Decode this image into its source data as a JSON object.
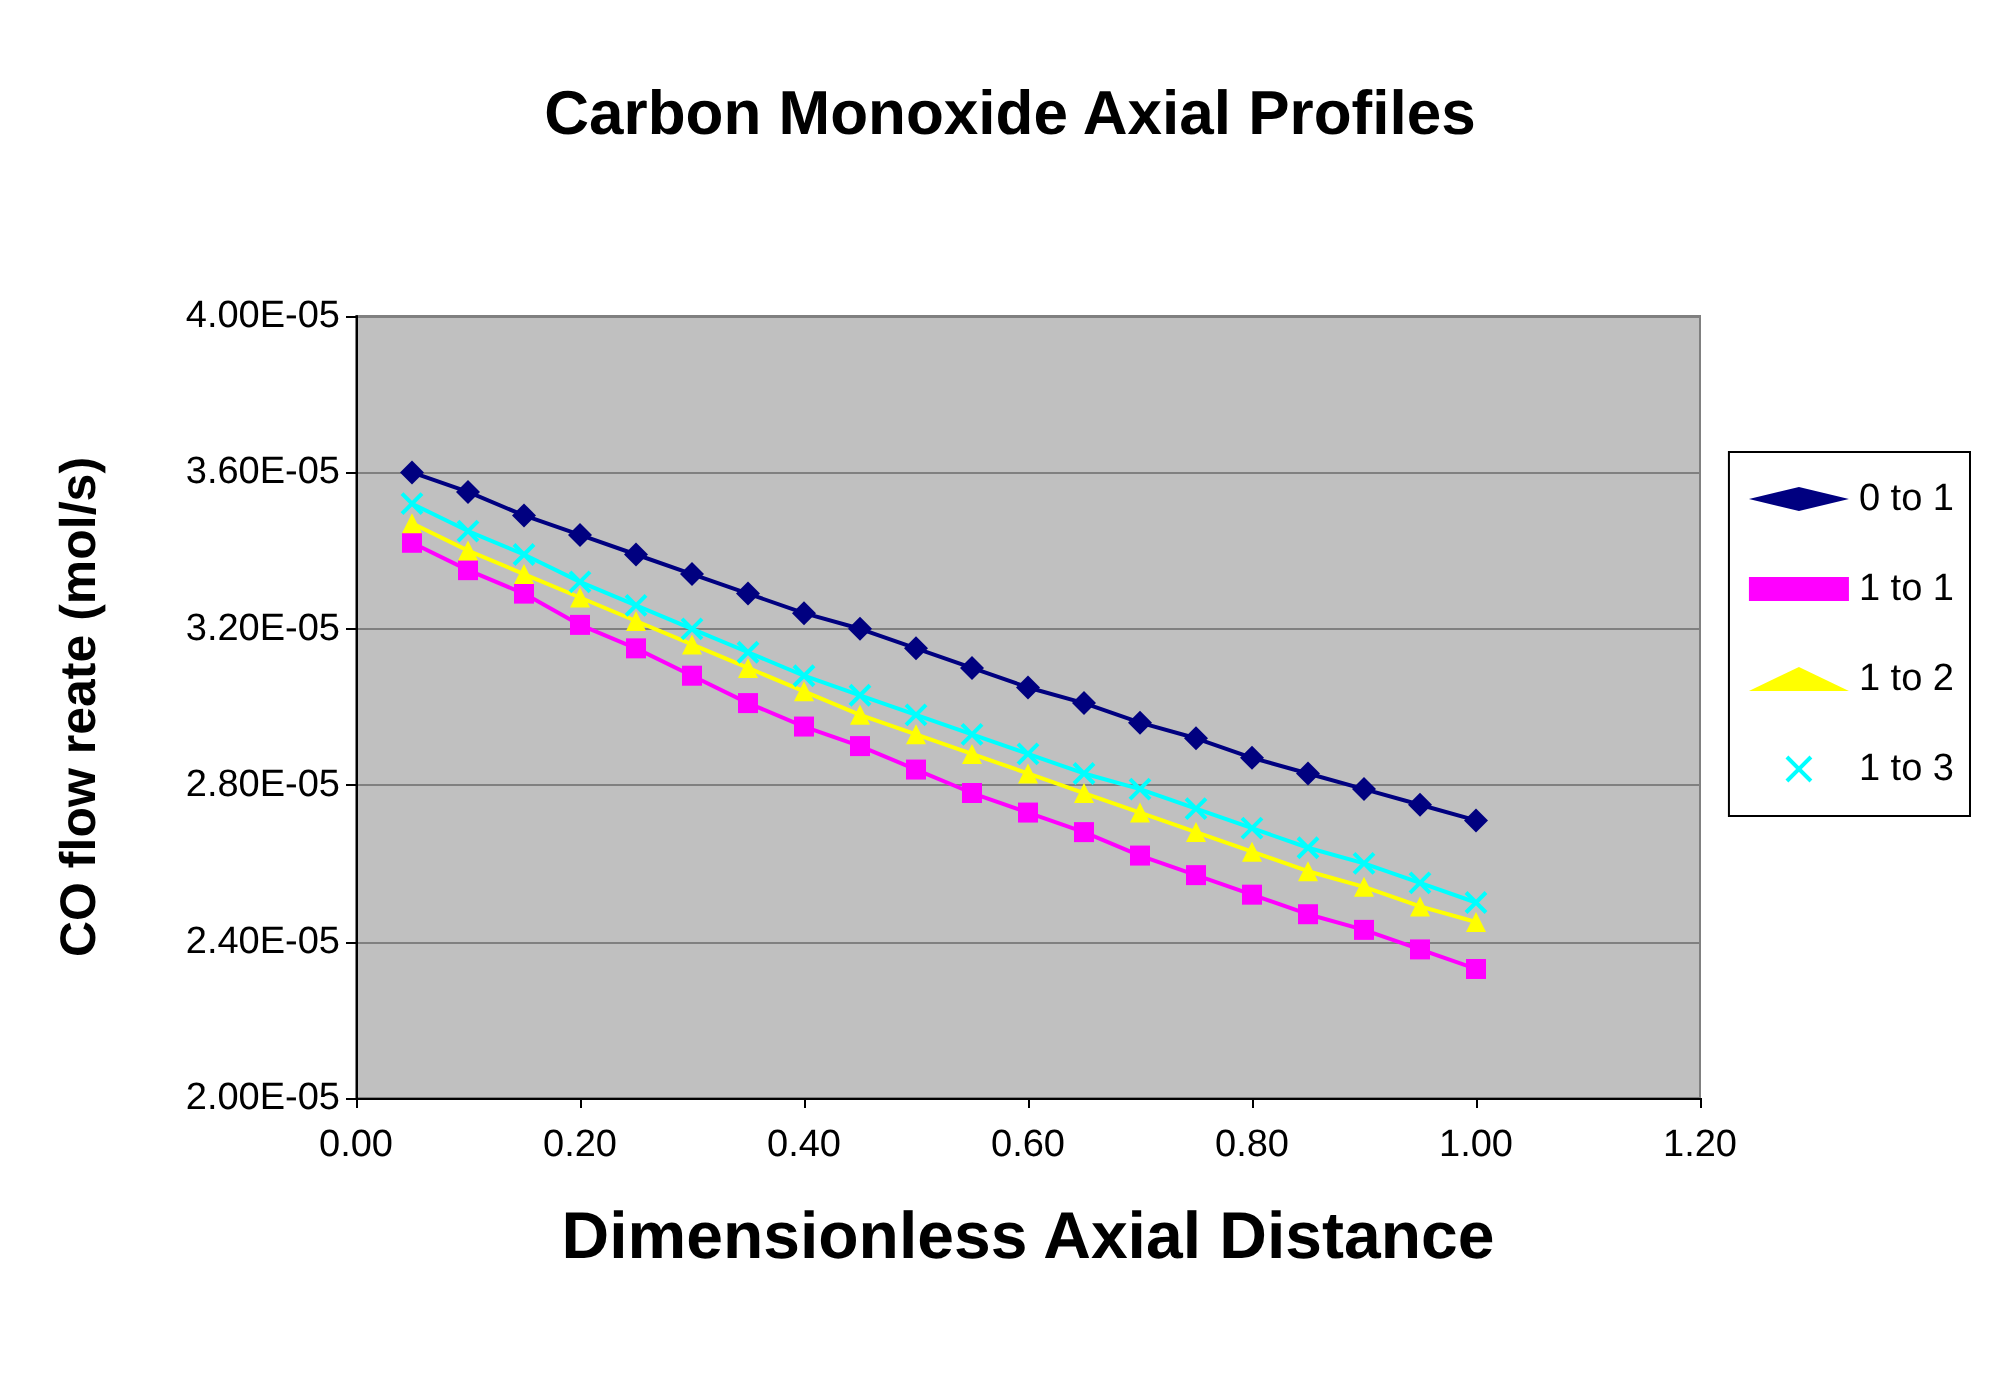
{
  "chart_data": {
    "type": "line",
    "title": "Carbon Monoxide Axial Profiles",
    "xlabel": "Dimensionless Axial Distance",
    "ylabel": "CO flow reate (mol/s)",
    "x": [
      0.05,
      0.1,
      0.15,
      0.2,
      0.25,
      0.3,
      0.35,
      0.4,
      0.45,
      0.5,
      0.55,
      0.6,
      0.65,
      0.7,
      0.75,
      0.8,
      0.85,
      0.9,
      0.95,
      1.0
    ],
    "series": [
      {
        "name": "0 to 1",
        "color": "#000080",
        "marker": "diamond",
        "values": [
          3.6e-05,
          3.55e-05,
          3.49e-05,
          3.44e-05,
          3.39e-05,
          3.34e-05,
          3.29e-05,
          3.24e-05,
          3.2e-05,
          3.15e-05,
          3.1e-05,
          3.05e-05,
          3.01e-05,
          2.96e-05,
          2.92e-05,
          2.87e-05,
          2.83e-05,
          2.79e-05,
          2.75e-05,
          2.71e-05
        ]
      },
      {
        "name": "1 to 1",
        "color": "#ff00ff",
        "marker": "square",
        "values": [
          3.42e-05,
          3.35e-05,
          3.29e-05,
          3.21e-05,
          3.15e-05,
          3.08e-05,
          3.01e-05,
          2.95e-05,
          2.9e-05,
          2.84e-05,
          2.78e-05,
          2.73e-05,
          2.68e-05,
          2.62e-05,
          2.57e-05,
          2.52e-05,
          2.47e-05,
          2.43e-05,
          2.38e-05,
          2.33e-05
        ]
      },
      {
        "name": "1 to 2",
        "color": "#ffff00",
        "marker": "triangle",
        "values": [
          3.47e-05,
          3.4e-05,
          3.34e-05,
          3.28e-05,
          3.22e-05,
          3.16e-05,
          3.1e-05,
          3.04e-05,
          2.98e-05,
          2.93e-05,
          2.88e-05,
          2.83e-05,
          2.78e-05,
          2.73e-05,
          2.68e-05,
          2.63e-05,
          2.58e-05,
          2.54e-05,
          2.49e-05,
          2.45e-05
        ]
      },
      {
        "name": "1 to 3",
        "color": "#00ffff",
        "marker": "cross",
        "values": [
          3.52e-05,
          3.45e-05,
          3.39e-05,
          3.32e-05,
          3.26e-05,
          3.2e-05,
          3.14e-05,
          3.08e-05,
          3.03e-05,
          2.98e-05,
          2.93e-05,
          2.88e-05,
          2.83e-05,
          2.79e-05,
          2.74e-05,
          2.69e-05,
          2.64e-05,
          2.6e-05,
          2.55e-05,
          2.5e-05
        ]
      }
    ],
    "xlim": [
      0,
      1.2
    ],
    "xticks": [
      {
        "value": 0,
        "label": "0.00"
      },
      {
        "value": 0.2,
        "label": "0.20"
      },
      {
        "value": 0.4,
        "label": "0.40"
      },
      {
        "value": 0.6,
        "label": "0.60"
      },
      {
        "value": 0.8,
        "label": "0.80"
      },
      {
        "value": 1.0,
        "label": "1.00"
      },
      {
        "value": 1.2,
        "label": "1.20"
      }
    ],
    "ylim": [
      2e-05,
      4e-05
    ],
    "yticks": [
      {
        "value": 2e-05,
        "label": "2.00E-05"
      },
      {
        "value": 2.4e-05,
        "label": "2.40E-05"
      },
      {
        "value": 2.8e-05,
        "label": "2.80E-05"
      },
      {
        "value": 3.2e-05,
        "label": "3.20E-05"
      },
      {
        "value": 3.6e-05,
        "label": "3.60E-05"
      },
      {
        "value": 4e-05,
        "label": "4.00E-05"
      }
    ],
    "grid": "y",
    "legend": "right",
    "line_style": "solid"
  }
}
